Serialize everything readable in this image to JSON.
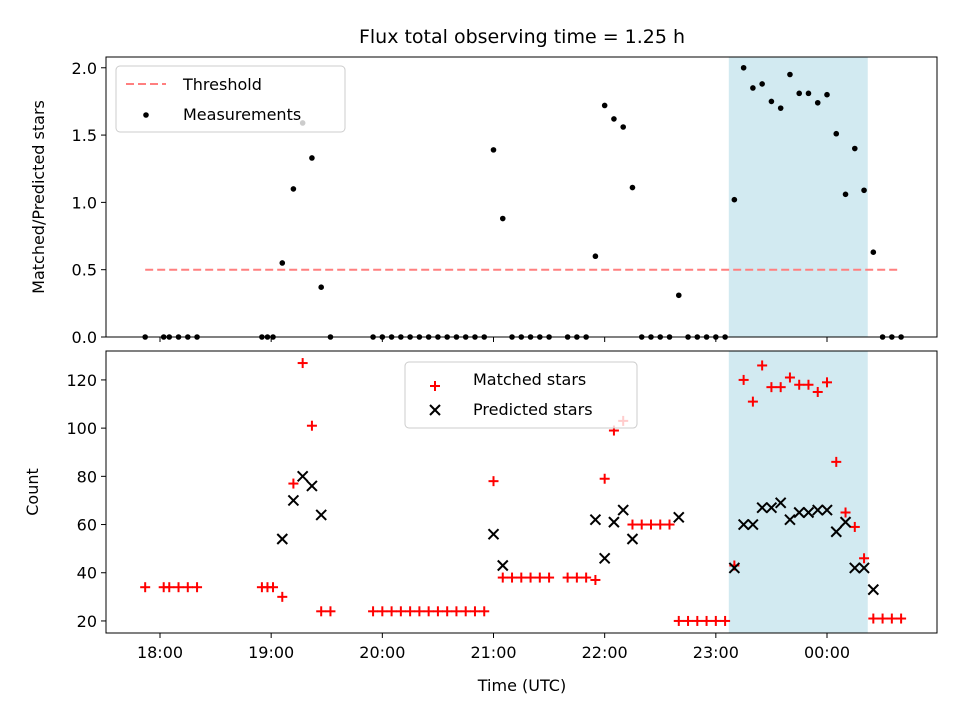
{
  "title": "Flux total observing time = 1.25 h",
  "colors": {
    "threshold": "#ff7f7f",
    "measurement": "#000000",
    "matched": "#ff0000",
    "predicted": "#000000",
    "highlight": "#add8e6"
  },
  "chart_data": [
    {
      "type": "scatter",
      "panel": "top",
      "ylabel": "Matched/Predicted stars",
      "ylim": [
        0,
        2.08
      ],
      "yticks": [
        0.0,
        0.5,
        1.0,
        1.5,
        2.0
      ],
      "ytick_labels": [
        "0.0",
        "0.5",
        "1.0",
        "1.5",
        "2.0"
      ],
      "x_range": [
        "17:32",
        "23:55+1h"
      ],
      "highlight_span": [
        "23:07",
        "00:22"
      ],
      "legend": {
        "placement": "upper-left",
        "entries": [
          "Threshold",
          "Measurements"
        ]
      },
      "threshold": {
        "name": "Threshold",
        "value": 0.5,
        "x_start": "17:52",
        "x_end": "00:40"
      },
      "series": [
        {
          "name": "Measurements",
          "points": [
            [
              "17:52",
              0.0
            ],
            [
              "18:02",
              0.0
            ],
            [
              "18:05",
              0.0
            ],
            [
              "18:10",
              0.0
            ],
            [
              "18:15",
              0.0
            ],
            [
              "18:20",
              0.0
            ],
            [
              "18:55",
              0.0
            ],
            [
              "18:58",
              0.0
            ],
            [
              "19:01",
              0.0
            ],
            [
              "19:06",
              0.55
            ],
            [
              "19:12",
              1.1
            ],
            [
              "19:17",
              1.59
            ],
            [
              "19:22",
              1.33
            ],
            [
              "19:27",
              0.37
            ],
            [
              "19:32",
              0.0
            ],
            [
              "19:55",
              0.0
            ],
            [
              "20:00",
              0.0
            ],
            [
              "20:05",
              0.0
            ],
            [
              "20:10",
              0.0
            ],
            [
              "20:15",
              0.0
            ],
            [
              "20:20",
              0.0
            ],
            [
              "20:25",
              0.0
            ],
            [
              "20:30",
              0.0
            ],
            [
              "20:35",
              0.0
            ],
            [
              "20:40",
              0.0
            ],
            [
              "20:45",
              0.0
            ],
            [
              "20:50",
              0.0
            ],
            [
              "20:55",
              0.0
            ],
            [
              "21:00",
              1.39
            ],
            [
              "21:05",
              0.88
            ],
            [
              "21:10",
              0.0
            ],
            [
              "21:15",
              0.0
            ],
            [
              "21:20",
              0.0
            ],
            [
              "21:25",
              0.0
            ],
            [
              "21:30",
              0.0
            ],
            [
              "21:40",
              0.0
            ],
            [
              "21:45",
              0.0
            ],
            [
              "21:50",
              0.0
            ],
            [
              "21:55",
              0.6
            ],
            [
              "22:00",
              1.72
            ],
            [
              "22:05",
              1.62
            ],
            [
              "22:10",
              1.56
            ],
            [
              "22:15",
              1.11
            ],
            [
              "22:20",
              0.0
            ],
            [
              "22:25",
              0.0
            ],
            [
              "22:30",
              0.0
            ],
            [
              "22:35",
              0.0
            ],
            [
              "22:40",
              0.31
            ],
            [
              "22:45",
              0.0
            ],
            [
              "22:50",
              0.0
            ],
            [
              "22:55",
              0.0
            ],
            [
              "23:00",
              0.0
            ],
            [
              "23:05",
              0.0
            ],
            [
              "23:10",
              1.02
            ],
            [
              "23:15",
              2.0
            ],
            [
              "23:20",
              1.85
            ],
            [
              "23:25",
              1.88
            ],
            [
              "23:30",
              1.75
            ],
            [
              "23:35",
              1.7
            ],
            [
              "23:40",
              1.95
            ],
            [
              "23:45",
              1.81
            ],
            [
              "23:50",
              1.81
            ],
            [
              "23:55",
              1.74
            ],
            [
              "00:00",
              1.8
            ],
            [
              "00:05",
              1.51
            ],
            [
              "00:10",
              1.06
            ],
            [
              "00:15",
              1.4
            ],
            [
              "00:20",
              1.09
            ],
            [
              "00:25",
              0.63
            ],
            [
              "00:30",
              0.0
            ],
            [
              "00:35",
              0.0
            ],
            [
              "00:40",
              0.0
            ]
          ]
        }
      ]
    },
    {
      "type": "scatter",
      "panel": "bottom",
      "xlabel": "Time (UTC)",
      "ylabel": "Count",
      "ylim": [
        15,
        132
      ],
      "yticks": [
        20,
        40,
        60,
        80,
        100,
        120
      ],
      "ytick_labels": [
        "20",
        "40",
        "60",
        "80",
        "100",
        "120"
      ],
      "xticks": [
        "18:00",
        "19:00",
        "20:00",
        "21:00",
        "22:00",
        "23:00",
        "00:00"
      ],
      "highlight_span": [
        "23:07",
        "00:22"
      ],
      "legend": {
        "placement": "upper-center",
        "entries": [
          "Matched stars",
          "Predicted stars"
        ]
      },
      "series": [
        {
          "name": "Matched stars",
          "marker": "plus",
          "points": [
            [
              "17:52",
              34
            ],
            [
              "18:02",
              34
            ],
            [
              "18:05",
              34
            ],
            [
              "18:10",
              34
            ],
            [
              "18:15",
              34
            ],
            [
              "18:20",
              34
            ],
            [
              "18:55",
              34
            ],
            [
              "18:58",
              34
            ],
            [
              "19:01",
              34
            ],
            [
              "19:06",
              30
            ],
            [
              "19:12",
              77
            ],
            [
              "19:17",
              127
            ],
            [
              "19:22",
              101
            ],
            [
              "19:27",
              24
            ],
            [
              "19:32",
              24
            ],
            [
              "19:55",
              24
            ],
            [
              "20:00",
              24
            ],
            [
              "20:05",
              24
            ],
            [
              "20:10",
              24
            ],
            [
              "20:15",
              24
            ],
            [
              "20:20",
              24
            ],
            [
              "20:25",
              24
            ],
            [
              "20:30",
              24
            ],
            [
              "20:35",
              24
            ],
            [
              "20:40",
              24
            ],
            [
              "20:45",
              24
            ],
            [
              "20:50",
              24
            ],
            [
              "20:55",
              24
            ],
            [
              "21:00",
              78
            ],
            [
              "21:05",
              38
            ],
            [
              "21:10",
              38
            ],
            [
              "21:15",
              38
            ],
            [
              "21:20",
              38
            ],
            [
              "21:25",
              38
            ],
            [
              "21:30",
              38
            ],
            [
              "21:40",
              38
            ],
            [
              "21:45",
              38
            ],
            [
              "21:50",
              38
            ],
            [
              "21:55",
              37
            ],
            [
              "22:00",
              79
            ],
            [
              "22:05",
              99
            ],
            [
              "22:10",
              103
            ],
            [
              "22:15",
              60
            ],
            [
              "22:20",
              60
            ],
            [
              "22:25",
              60
            ],
            [
              "22:30",
              60
            ],
            [
              "22:35",
              60
            ],
            [
              "22:40",
              20
            ],
            [
              "22:45",
              20
            ],
            [
              "22:50",
              20
            ],
            [
              "22:55",
              20
            ],
            [
              "23:00",
              20
            ],
            [
              "23:05",
              20
            ],
            [
              "23:10",
              43
            ],
            [
              "23:15",
              120
            ],
            [
              "23:20",
              111
            ],
            [
              "23:25",
              126
            ],
            [
              "23:30",
              117
            ],
            [
              "23:35",
              117
            ],
            [
              "23:40",
              121
            ],
            [
              "23:45",
              118
            ],
            [
              "23:50",
              118
            ],
            [
              "23:55",
              115
            ],
            [
              "00:00",
              119
            ],
            [
              "00:05",
              86
            ],
            [
              "00:10",
              65
            ],
            [
              "00:15",
              59
            ],
            [
              "00:20",
              46
            ],
            [
              "00:25",
              21
            ],
            [
              "00:30",
              21
            ],
            [
              "00:35",
              21
            ],
            [
              "00:40",
              21
            ]
          ]
        },
        {
          "name": "Predicted stars",
          "marker": "x",
          "points": [
            [
              "19:06",
              54
            ],
            [
              "19:12",
              70
            ],
            [
              "19:17",
              80
            ],
            [
              "19:22",
              76
            ],
            [
              "19:27",
              64
            ],
            [
              "21:00",
              56
            ],
            [
              "21:05",
              43
            ],
            [
              "21:55",
              62
            ],
            [
              "22:00",
              46
            ],
            [
              "22:05",
              61
            ],
            [
              "22:10",
              66
            ],
            [
              "22:15",
              54
            ],
            [
              "22:40",
              63
            ],
            [
              "23:10",
              42
            ],
            [
              "23:15",
              60
            ],
            [
              "23:20",
              60
            ],
            [
              "23:25",
              67
            ],
            [
              "23:30",
              67
            ],
            [
              "23:35",
              69
            ],
            [
              "23:40",
              62
            ],
            [
              "23:45",
              65
            ],
            [
              "23:50",
              65
            ],
            [
              "23:55",
              66
            ],
            [
              "00:00",
              66
            ],
            [
              "00:05",
              57
            ],
            [
              "00:10",
              61
            ],
            [
              "00:15",
              42
            ],
            [
              "00:20",
              42
            ],
            [
              "00:25",
              33
            ]
          ]
        }
      ]
    }
  ]
}
